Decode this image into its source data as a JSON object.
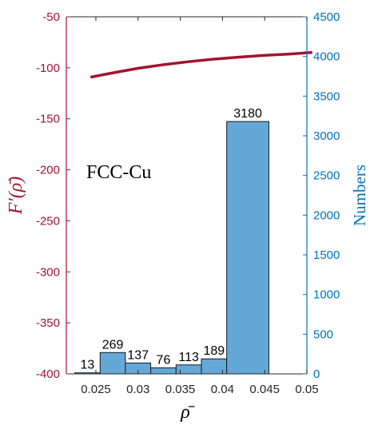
{
  "colors": {
    "left_axis": "#a2142f",
    "right_axis": "#0072bd",
    "bar_fill": "#64a8d8",
    "bar_edge": "#1a1a1a",
    "curve": "#a2142f"
  },
  "chart_data": {
    "type": "bar",
    "annotation": "FCC-Cu",
    "xlabel": "ρ̄",
    "ylabel_left": "F′(ρ̄)",
    "ylabel_right": "Numbers",
    "xlim": [
      0.0215,
      0.05
    ],
    "ylim_left": [
      -400,
      -50
    ],
    "ylim_right": [
      0,
      4500
    ],
    "x_ticks": [
      0.025,
      0.03,
      0.035,
      0.04,
      0.045,
      0.05
    ],
    "x_tick_labels": [
      "0.025",
      "0.03",
      "0.035",
      "0.04",
      "0.045",
      "0.05"
    ],
    "left_ticks": [
      -400,
      -350,
      -300,
      -250,
      -200,
      -150,
      -100,
      -50
    ],
    "left_tick_labels": [
      "-400",
      "-350",
      "-300",
      "-250",
      "-200",
      "-150",
      "-100",
      "-50"
    ],
    "right_ticks": [
      0,
      500,
      1000,
      1500,
      2000,
      2500,
      3000,
      3500,
      4000,
      4500
    ],
    "right_tick_labels": [
      "0",
      "500",
      "1000",
      "1500",
      "2000",
      "2500",
      "3000",
      "3500",
      "4000",
      "4500"
    ],
    "histogram": {
      "bin_edges": [
        0.0225,
        0.0255,
        0.0285,
        0.0315,
        0.0345,
        0.0375,
        0.0405,
        0.0455
      ],
      "counts": [
        13,
        269,
        137,
        76,
        113,
        189,
        3180
      ],
      "labels": [
        "13",
        "269",
        "137",
        "76",
        "113",
        "189",
        "3180"
      ]
    },
    "curve": {
      "name": "",
      "x": [
        0.0245,
        0.027,
        0.03,
        0.033,
        0.036,
        0.039,
        0.042,
        0.045,
        0.048,
        0.0505
      ],
      "y": [
        -109,
        -105,
        -100.5,
        -97,
        -94,
        -91.5,
        -89.5,
        -87.8,
        -86.5,
        -85
      ]
    },
    "grid": false,
    "legend": "none"
  }
}
